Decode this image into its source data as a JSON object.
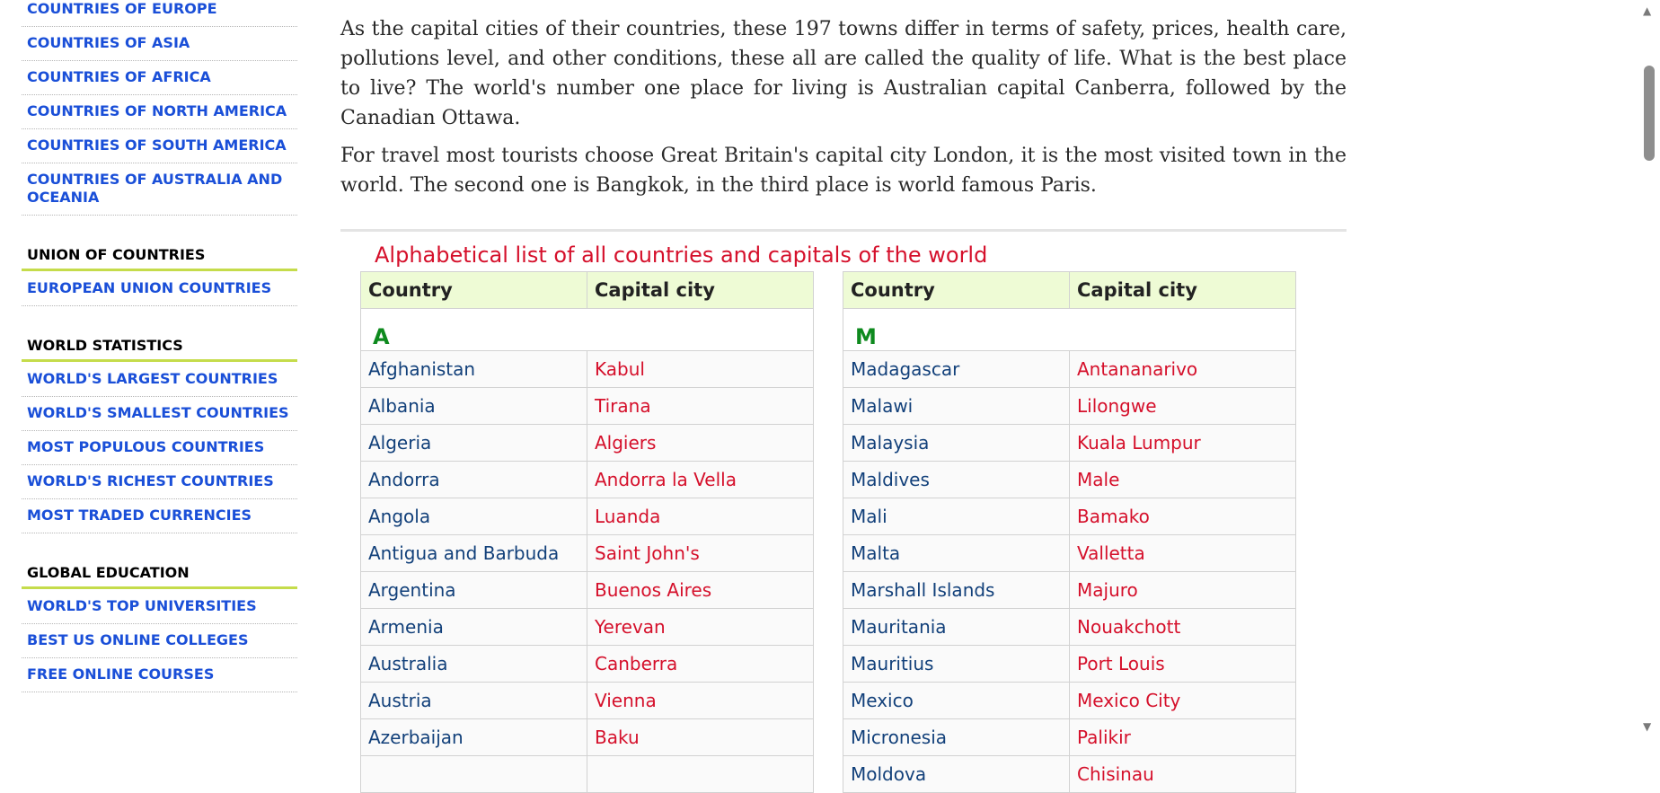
{
  "sidebar": {
    "group1": [
      "COUNTRIES OF EUROPE",
      "COUNTRIES OF ASIA",
      "COUNTRIES OF AFRICA",
      "COUNTRIES OF NORTH AMERICA",
      "COUNTRIES OF SOUTH AMERICA",
      "COUNTRIES OF AUSTRALIA AND OCEANIA"
    ],
    "union_heading": "UNION OF COUNTRIES",
    "union_items": [
      "EUROPEAN UNION COUNTRIES"
    ],
    "stats_heading": "WORLD STATISTICS",
    "stats_items": [
      "WORLD'S LARGEST COUNTRIES",
      "WORLD'S SMALLEST COUNTRIES",
      "MOST POPULOUS COUNTRIES",
      "WORLD'S RICHEST COUNTRIES",
      "MOST TRADED CURRENCIES"
    ],
    "education_heading": "GLOBAL EDUCATION",
    "education_items": [
      "WORLD'S TOP UNIVERSITIES",
      "BEST US ONLINE COLLEGES",
      "FREE ONLINE COURSES"
    ]
  },
  "intro": {
    "p1": "As the capital cities of their countries, these 197 towns differ in terms of safety, prices, health care, pollutions level, and other conditions, these all are called the quality of life. What is the best place to live? The world's number one place for living is Australian capital Canberra, followed by the Canadian Ottawa.",
    "p2": "For travel most tourists choose Great Britain's capital city London, it is the most visited town in the world. The second one is Bangkok, in the third place is world famous Paris."
  },
  "list_title": "Alphabetical list of all countries and capitals of the world",
  "table_headers": {
    "country": "Country",
    "capital": "Capital city"
  },
  "left_table": {
    "letter": "A",
    "rows": [
      [
        "Afghanistan",
        "Kabul"
      ],
      [
        "Albania",
        "Tirana"
      ],
      [
        "Algeria",
        "Algiers"
      ],
      [
        "Andorra",
        "Andorra la Vella"
      ],
      [
        "Angola",
        "Luanda"
      ],
      [
        "Antigua and Barbuda",
        "Saint John's"
      ],
      [
        "Argentina",
        "Buenos Aires"
      ],
      [
        "Armenia",
        "Yerevan"
      ],
      [
        "Australia",
        "Canberra"
      ],
      [
        "Austria",
        "Vienna"
      ],
      [
        "Azerbaijan",
        "Baku"
      ],
      [
        "",
        ""
      ]
    ]
  },
  "right_table": {
    "letter": "M",
    "rows": [
      [
        "Madagascar",
        "Antananarivo"
      ],
      [
        "Malawi",
        "Lilongwe"
      ],
      [
        "Malaysia",
        "Kuala Lumpur"
      ],
      [
        "Maldives",
        "Male"
      ],
      [
        "Mali",
        "Bamako"
      ],
      [
        "Malta",
        "Valletta"
      ],
      [
        "Marshall Islands",
        "Majuro"
      ],
      [
        "Mauritania",
        "Nouakchott"
      ],
      [
        "Mauritius",
        "Port Louis"
      ],
      [
        "Mexico",
        "Mexico City"
      ],
      [
        "Micronesia",
        "Palikir"
      ],
      [
        "Moldova",
        "Chisinau"
      ]
    ]
  },
  "scrollbar": {
    "up_icon": "triangle-up-icon",
    "down_icon": "triangle-down-icon"
  }
}
